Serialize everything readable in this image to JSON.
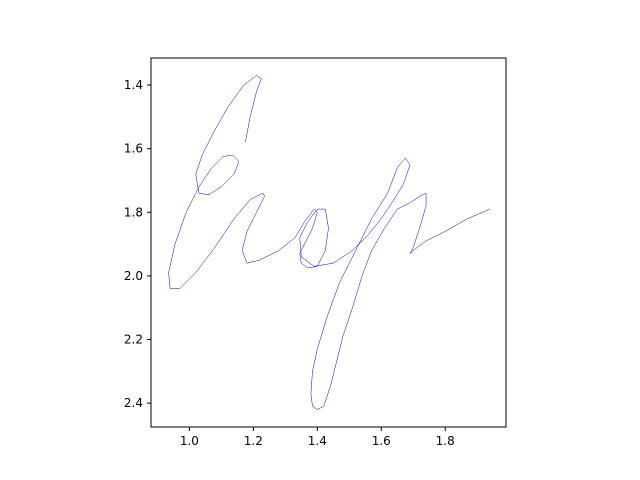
{
  "chart_data": {
    "type": "line",
    "title": "",
    "xlabel": "",
    "ylabel": "",
    "xlim": [
      0.88,
      1.99
    ],
    "ylim": [
      2.475,
      1.315
    ],
    "y_inverted": true,
    "grid": false,
    "legend": "none",
    "series_color": "#0000cc",
    "x_ticks": [
      1.0,
      1.2,
      1.4,
      1.6,
      1.8
    ],
    "x_tick_labels": [
      "1.0",
      "1.2",
      "1.4",
      "1.6",
      "1.8"
    ],
    "y_ticks": [
      1.4,
      1.6,
      1.8,
      2.0,
      2.2,
      2.4
    ],
    "y_tick_labels": [
      "1.4",
      "1.6",
      "1.8",
      "2.0",
      "2.2",
      "2.4"
    ],
    "series": [
      {
        "name": "handwriting stroke",
        "x": [
          1.175,
          1.19,
          1.21,
          1.225,
          1.21,
          1.17,
          1.12,
          1.075,
          1.04,
          1.02,
          1.03,
          1.06,
          1.1,
          1.14,
          1.155,
          1.135,
          1.105,
          1.07,
          1.03,
          0.99,
          0.955,
          0.935,
          0.94,
          0.97,
          1.02,
          1.08,
          1.14,
          1.19,
          1.23,
          1.235,
          1.21,
          1.18,
          1.165,
          1.18,
          1.22,
          1.28,
          1.33,
          1.36,
          1.39,
          1.4,
          1.385,
          1.36,
          1.345,
          1.35,
          1.37,
          1.4,
          1.425,
          1.435,
          1.425,
          1.4,
          1.37,
          1.345,
          1.35,
          1.39,
          1.45,
          1.51,
          1.56,
          1.6,
          1.64,
          1.67,
          1.69,
          1.675,
          1.65,
          1.62,
          1.57,
          1.52,
          1.47,
          1.43,
          1.4,
          1.385,
          1.38,
          1.385,
          1.4,
          1.42,
          1.44,
          1.46,
          1.48,
          1.51,
          1.54,
          1.57,
          1.61,
          1.65,
          1.69,
          1.72,
          1.74,
          1.74,
          1.72,
          1.7,
          1.69,
          1.7,
          1.74,
          1.8,
          1.87,
          1.94
        ],
        "y": [
          1.58,
          1.5,
          1.42,
          1.38,
          1.37,
          1.4,
          1.47,
          1.55,
          1.62,
          1.68,
          1.74,
          1.745,
          1.72,
          1.68,
          1.64,
          1.62,
          1.625,
          1.66,
          1.72,
          1.8,
          1.9,
          1.99,
          2.04,
          2.04,
          1.99,
          1.91,
          1.82,
          1.76,
          1.74,
          1.75,
          1.8,
          1.86,
          1.92,
          1.96,
          1.95,
          1.92,
          1.88,
          1.83,
          1.79,
          1.8,
          1.85,
          1.9,
          1.93,
          1.96,
          1.975,
          1.97,
          1.92,
          1.85,
          1.79,
          1.79,
          1.83,
          1.88,
          1.94,
          1.97,
          1.96,
          1.92,
          1.87,
          1.82,
          1.76,
          1.71,
          1.65,
          1.63,
          1.66,
          1.74,
          1.82,
          1.92,
          2.02,
          2.13,
          2.23,
          2.3,
          2.37,
          2.41,
          2.42,
          2.41,
          2.35,
          2.27,
          2.19,
          2.1,
          2.0,
          1.92,
          1.85,
          1.79,
          1.77,
          1.75,
          1.74,
          1.78,
          1.85,
          1.91,
          1.93,
          1.92,
          1.89,
          1.86,
          1.82,
          1.79
        ]
      }
    ]
  }
}
